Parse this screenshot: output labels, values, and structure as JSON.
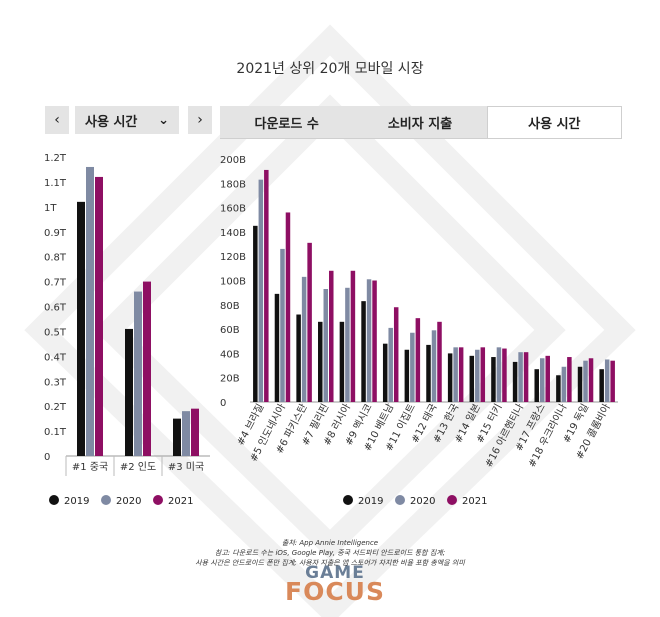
{
  "header": {
    "title": "2021년 상위 20개 모바일 시장"
  },
  "controls": {
    "prev_icon": "chevron-left-icon",
    "next_icon": "chevron-right-icon",
    "prev_glyph": "‹",
    "next_glyph": "›",
    "selected_metric": "사용 시간",
    "dropdown_icon": "chevron-down-icon",
    "dropdown_glyph": "⌄"
  },
  "tabs": [
    {
      "label": "다운로드 수",
      "active": false
    },
    {
      "label": "소비자 지출",
      "active": false
    },
    {
      "label": "사용 시간",
      "active": true
    }
  ],
  "colors": {
    "2019": "#111111",
    "2020": "#7f8aa3",
    "2021": "#8e0f63"
  },
  "chart_data": [
    {
      "type": "bar",
      "categories": [
        "#1 중국",
        "#2 인도",
        "#3 미국"
      ],
      "series": [
        {
          "name": "2019",
          "values": [
            1.02,
            0.51,
            0.15
          ]
        },
        {
          "name": "2020",
          "values": [
            1.16,
            0.66,
            0.18
          ]
        },
        {
          "name": "2021",
          "values": [
            1.12,
            0.7,
            0.19
          ]
        }
      ],
      "ylim": [
        0,
        1.2
      ],
      "yticks": [
        "0",
        "0.1T",
        "0.2T",
        "0.3T",
        "0.4T",
        "0.5T",
        "0.6T",
        "0.7T",
        "0.8T",
        "0.9T",
        "1T",
        "1.1T",
        "1.2T"
      ],
      "legend": "bottom"
    },
    {
      "type": "bar",
      "categories": [
        "#4 브라질",
        "#5 인도네시아",
        "#6 파키스탄",
        "#7 필리핀",
        "#8 러시아",
        "#9 멕시코",
        "#10 베트남",
        "#11 이집트",
        "#12 태국",
        "#13 한국",
        "#14 일본",
        "#15 터키",
        "#16 아르헨티나",
        "#17 프랑스",
        "#18 우크라이나",
        "#19 독일",
        "#20 콜롬비아"
      ],
      "series": [
        {
          "name": "2019",
          "values": [
            145,
            89,
            72,
            66,
            66,
            83,
            48,
            43,
            47,
            40,
            38,
            37,
            33,
            27,
            22,
            29,
            27
          ]
        },
        {
          "name": "2020",
          "values": [
            183,
            126,
            103,
            93,
            94,
            101,
            61,
            57,
            59,
            45,
            43,
            45,
            41,
            36,
            29,
            34,
            35
          ]
        },
        {
          "name": "2021",
          "values": [
            191,
            156,
            131,
            108,
            108,
            100,
            78,
            69,
            66,
            45,
            45,
            44,
            41,
            38,
            37,
            36,
            34
          ]
        }
      ],
      "ylim": [
        0,
        200
      ],
      "yticks": [
        "0",
        "20B",
        "40B",
        "60B",
        "80B",
        "100B",
        "120B",
        "140B",
        "160B",
        "180B",
        "200B"
      ],
      "legend": "bottom"
    }
  ],
  "legend": [
    "2019",
    "2020",
    "2021"
  ],
  "footer": {
    "source": "출처: App Annie Intelligence",
    "note1": "참고: 다운로드 수는 iOS, Google Play, 중국 서드파티 안드로이드 통합 집계;",
    "note2": "사용 시간은 안드로이드 폰만 집계; 사용자 지출은 앱 스토어가 차지한 비율 포함 총액을 의미"
  },
  "logo": {
    "line1": "GAME",
    "line2": "FOCUS"
  }
}
